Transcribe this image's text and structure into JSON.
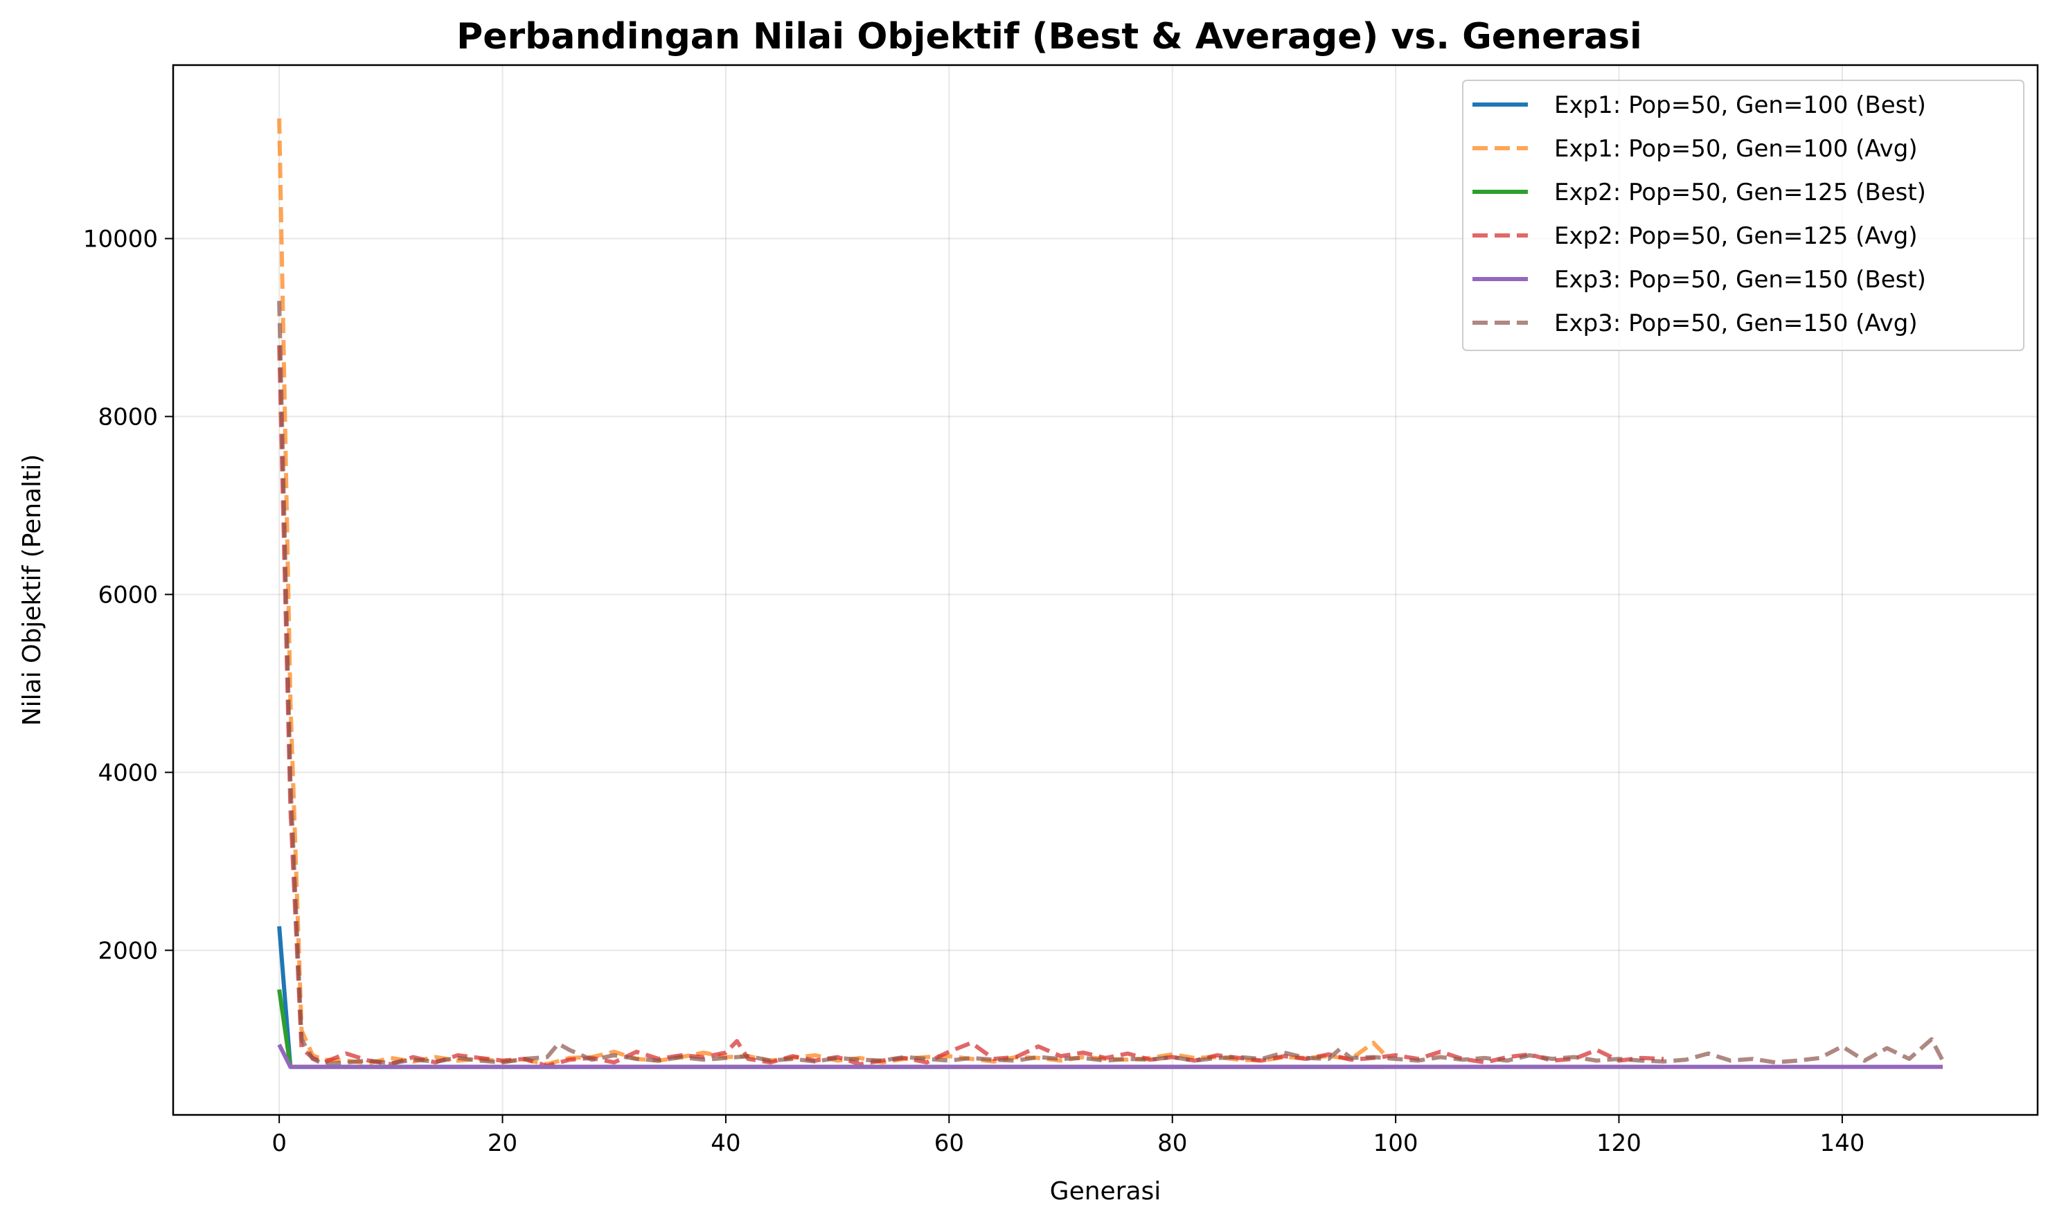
{
  "chart_data": {
    "type": "line",
    "title": "Perbandingan Nilai Objektif (Best & Average) vs. Generasi",
    "xlabel": "Generasi",
    "ylabel": "Nilai Objektif (Penalti)",
    "xlim": [
      -9.5,
      157.5
    ],
    "ylim": [
      150,
      11950
    ],
    "xticks": [
      0,
      20,
      40,
      60,
      80,
      100,
      120,
      140
    ],
    "yticks": [
      2000,
      4000,
      6000,
      8000,
      10000
    ],
    "grid": true,
    "legend_position": "top-right",
    "series": [
      {
        "name": "Exp1: Pop=50, Gen=100 (Best)",
        "color": "#1f77b4",
        "style": "solid",
        "x": [
          0,
          1,
          99
        ],
        "y": [
          2270,
          690,
          690
        ]
      },
      {
        "name": "Exp1: Pop=50, Gen=100 (Avg)",
        "color": "#ff7f0e",
        "style": "dashed",
        "x": [
          0,
          1,
          2,
          3,
          4,
          6,
          8,
          10,
          12,
          14,
          16,
          18,
          20,
          22,
          24,
          26,
          28,
          30,
          32,
          34,
          36,
          38,
          40,
          42,
          44,
          46,
          48,
          50,
          52,
          54,
          56,
          58,
          60,
          62,
          64,
          66,
          68,
          70,
          72,
          74,
          76,
          78,
          80,
          82,
          84,
          86,
          88,
          90,
          92,
          94,
          96,
          98,
          99
        ],
        "y": [
          11350,
          4800,
          1100,
          820,
          770,
          760,
          730,
          790,
          750,
          800,
          760,
          780,
          750,
          770,
          720,
          790,
          800,
          860,
          780,
          760,
          800,
          850,
          800,
          810,
          760,
          790,
          820,
          760,
          790,
          740,
          780,
          800,
          810,
          780,
          750,
          800,
          790,
          760,
          800,
          780,
          770,
          790,
          830,
          790,
          800,
          770,
          760,
          800,
          790,
          810,
          780,
          960,
          830
        ]
      },
      {
        "name": "Exp2: Pop=50, Gen=125 (Best)",
        "color": "#2ca02c",
        "style": "solid",
        "x": [
          0,
          1,
          124
        ],
        "y": [
          1560,
          690,
          690
        ]
      },
      {
        "name": "Exp2: Pop=50, Gen=125 (Avg)",
        "color": "#d62728",
        "style": "dashed",
        "x": [
          0,
          1,
          2,
          3,
          4,
          6,
          8,
          10,
          12,
          14,
          16,
          18,
          20,
          22,
          24,
          26,
          28,
          30,
          32,
          34,
          36,
          38,
          40,
          41,
          42,
          44,
          46,
          48,
          50,
          52,
          54,
          56,
          58,
          60,
          62,
          64,
          66,
          68,
          70,
          72,
          74,
          76,
          78,
          80,
          82,
          84,
          86,
          88,
          90,
          92,
          94,
          96,
          98,
          100,
          102,
          104,
          106,
          108,
          110,
          112,
          114,
          116,
          118,
          120,
          122,
          124
        ],
        "y": [
          8800,
          3600,
          900,
          790,
          740,
          840,
          760,
          720,
          800,
          740,
          820,
          790,
          760,
          780,
          700,
          770,
          790,
          740,
          860,
          780,
          820,
          800,
          850,
          980,
          780,
          740,
          810,
          760,
          800,
          720,
          760,
          790,
          740,
          860,
          960,
          780,
          800,
          920,
          810,
          850,
          790,
          840,
          770,
          800,
          760,
          820,
          790,
          760,
          810,
          780,
          830,
          770,
          790,
          820,
          780,
          860,
          780,
          740,
          800,
          830,
          760,
          780,
          880,
          760,
          790,
          780
        ]
      },
      {
        "name": "Exp3: Pop=50, Gen=150 (Best)",
        "color": "#9467bd",
        "style": "solid",
        "x": [
          0,
          1,
          149
        ],
        "y": [
          940,
          690,
          690
        ]
      },
      {
        "name": "Exp3: Pop=50, Gen=150 (Avg)",
        "color": "#8c564b",
        "style": "dashed",
        "x": [
          0,
          1,
          2,
          3,
          4,
          6,
          8,
          10,
          12,
          14,
          16,
          18,
          20,
          22,
          24,
          25,
          26,
          28,
          30,
          32,
          34,
          36,
          38,
          40,
          42,
          44,
          46,
          48,
          50,
          52,
          54,
          56,
          58,
          60,
          62,
          64,
          66,
          68,
          70,
          72,
          74,
          76,
          78,
          80,
          82,
          84,
          86,
          88,
          90,
          92,
          94,
          95,
          96,
          98,
          100,
          102,
          104,
          106,
          108,
          110,
          112,
          114,
          116,
          118,
          120,
          122,
          124,
          126,
          128,
          130,
          132,
          134,
          136,
          138,
          140,
          142,
          144,
          146,
          148,
          149
        ],
        "y": [
          9300,
          3900,
          1000,
          780,
          720,
          740,
          760,
          730,
          770,
          750,
          790,
          760,
          740,
          780,
          800,
          950,
          880,
          770,
          820,
          780,
          760,
          800,
          770,
          790,
          810,
          760,
          780,
          750,
          790,
          770,
          760,
          800,
          780,
          760,
          790,
          770,
          760,
          800,
          780,
          790,
          760,
          780,
          770,
          800,
          760,
          790,
          800,
          780,
          850,
          790,
          780,
          890,
          790,
          800,
          780,
          760,
          800,
          770,
          790,
          760,
          820,
          780,
          800,
          760,
          780,
          760,
          750,
          770,
          840,
          760,
          780,
          740,
          760,
          790,
          920,
          760,
          900,
          780,
          1000,
          760
        ]
      }
    ]
  }
}
